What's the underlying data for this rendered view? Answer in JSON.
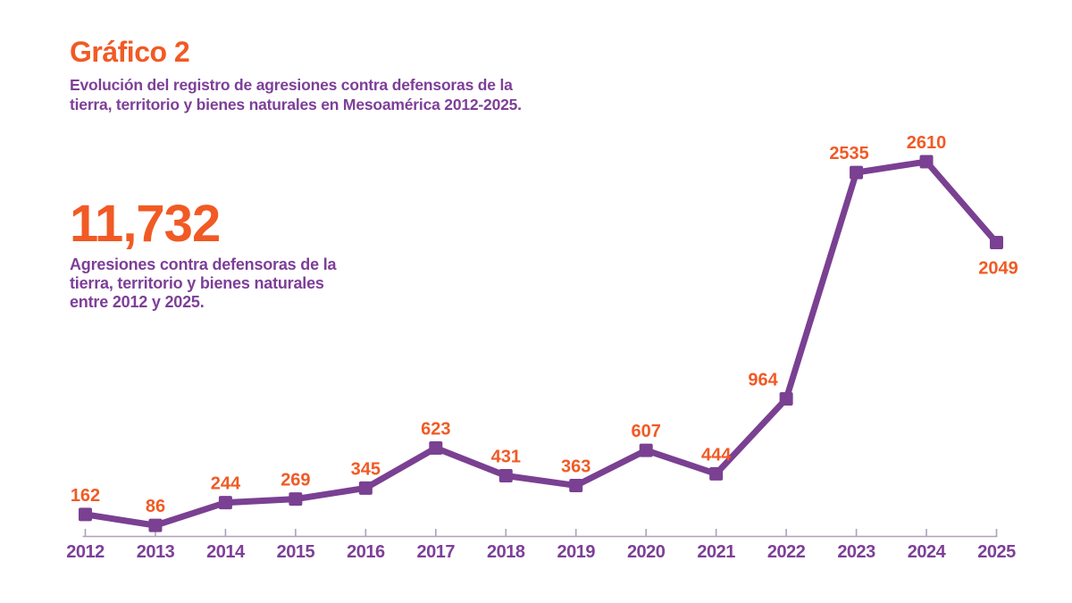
{
  "header": {
    "title": "Gráfico 2",
    "subtitle_line1": "Evolución del registro de agresiones contra defensoras de la",
    "subtitle_line2": "tierra, territorio y bienes naturales en Mesoamérica 2012-2025."
  },
  "stat": {
    "value": "11,732",
    "caption_line1": "Agresiones contra defensoras de la",
    "caption_line2": "tierra, territorio y bienes naturales",
    "caption_line3": "entre 2012 y 2025."
  },
  "colors": {
    "accent_orange": "#F15A24",
    "purple_text": "#7D3F98",
    "line_purple": "#7A4092",
    "axis_line": "#AFA0BC",
    "background": "#FFFFFF"
  },
  "chart_data": {
    "type": "line",
    "title": "Evolución del registro de agresiones contra defensoras de la tierra, territorio y bienes naturales en Mesoamérica 2012-2025",
    "categories": [
      "2012",
      "2013",
      "2014",
      "2015",
      "2016",
      "2017",
      "2018",
      "2019",
      "2020",
      "2021",
      "2022",
      "2023",
      "2024",
      "2025"
    ],
    "values": [
      162,
      86,
      244,
      269,
      345,
      623,
      431,
      363,
      607,
      444,
      964,
      2535,
      2610,
      2049
    ],
    "total": 11732,
    "xlabel": "",
    "ylabel": "",
    "ylim": [
      0,
      2610
    ],
    "grid": false,
    "legend": "none",
    "marker": "square",
    "data_labels": true,
    "label_placement": [
      "above",
      "above",
      "above",
      "above",
      "above",
      "above",
      "above",
      "above",
      "above",
      "above",
      "above-left",
      "above",
      "above",
      "below"
    ],
    "label_dx": [
      0,
      0,
      0,
      0,
      0,
      0,
      0,
      0,
      0,
      0,
      -26,
      -8,
      0,
      2
    ]
  }
}
